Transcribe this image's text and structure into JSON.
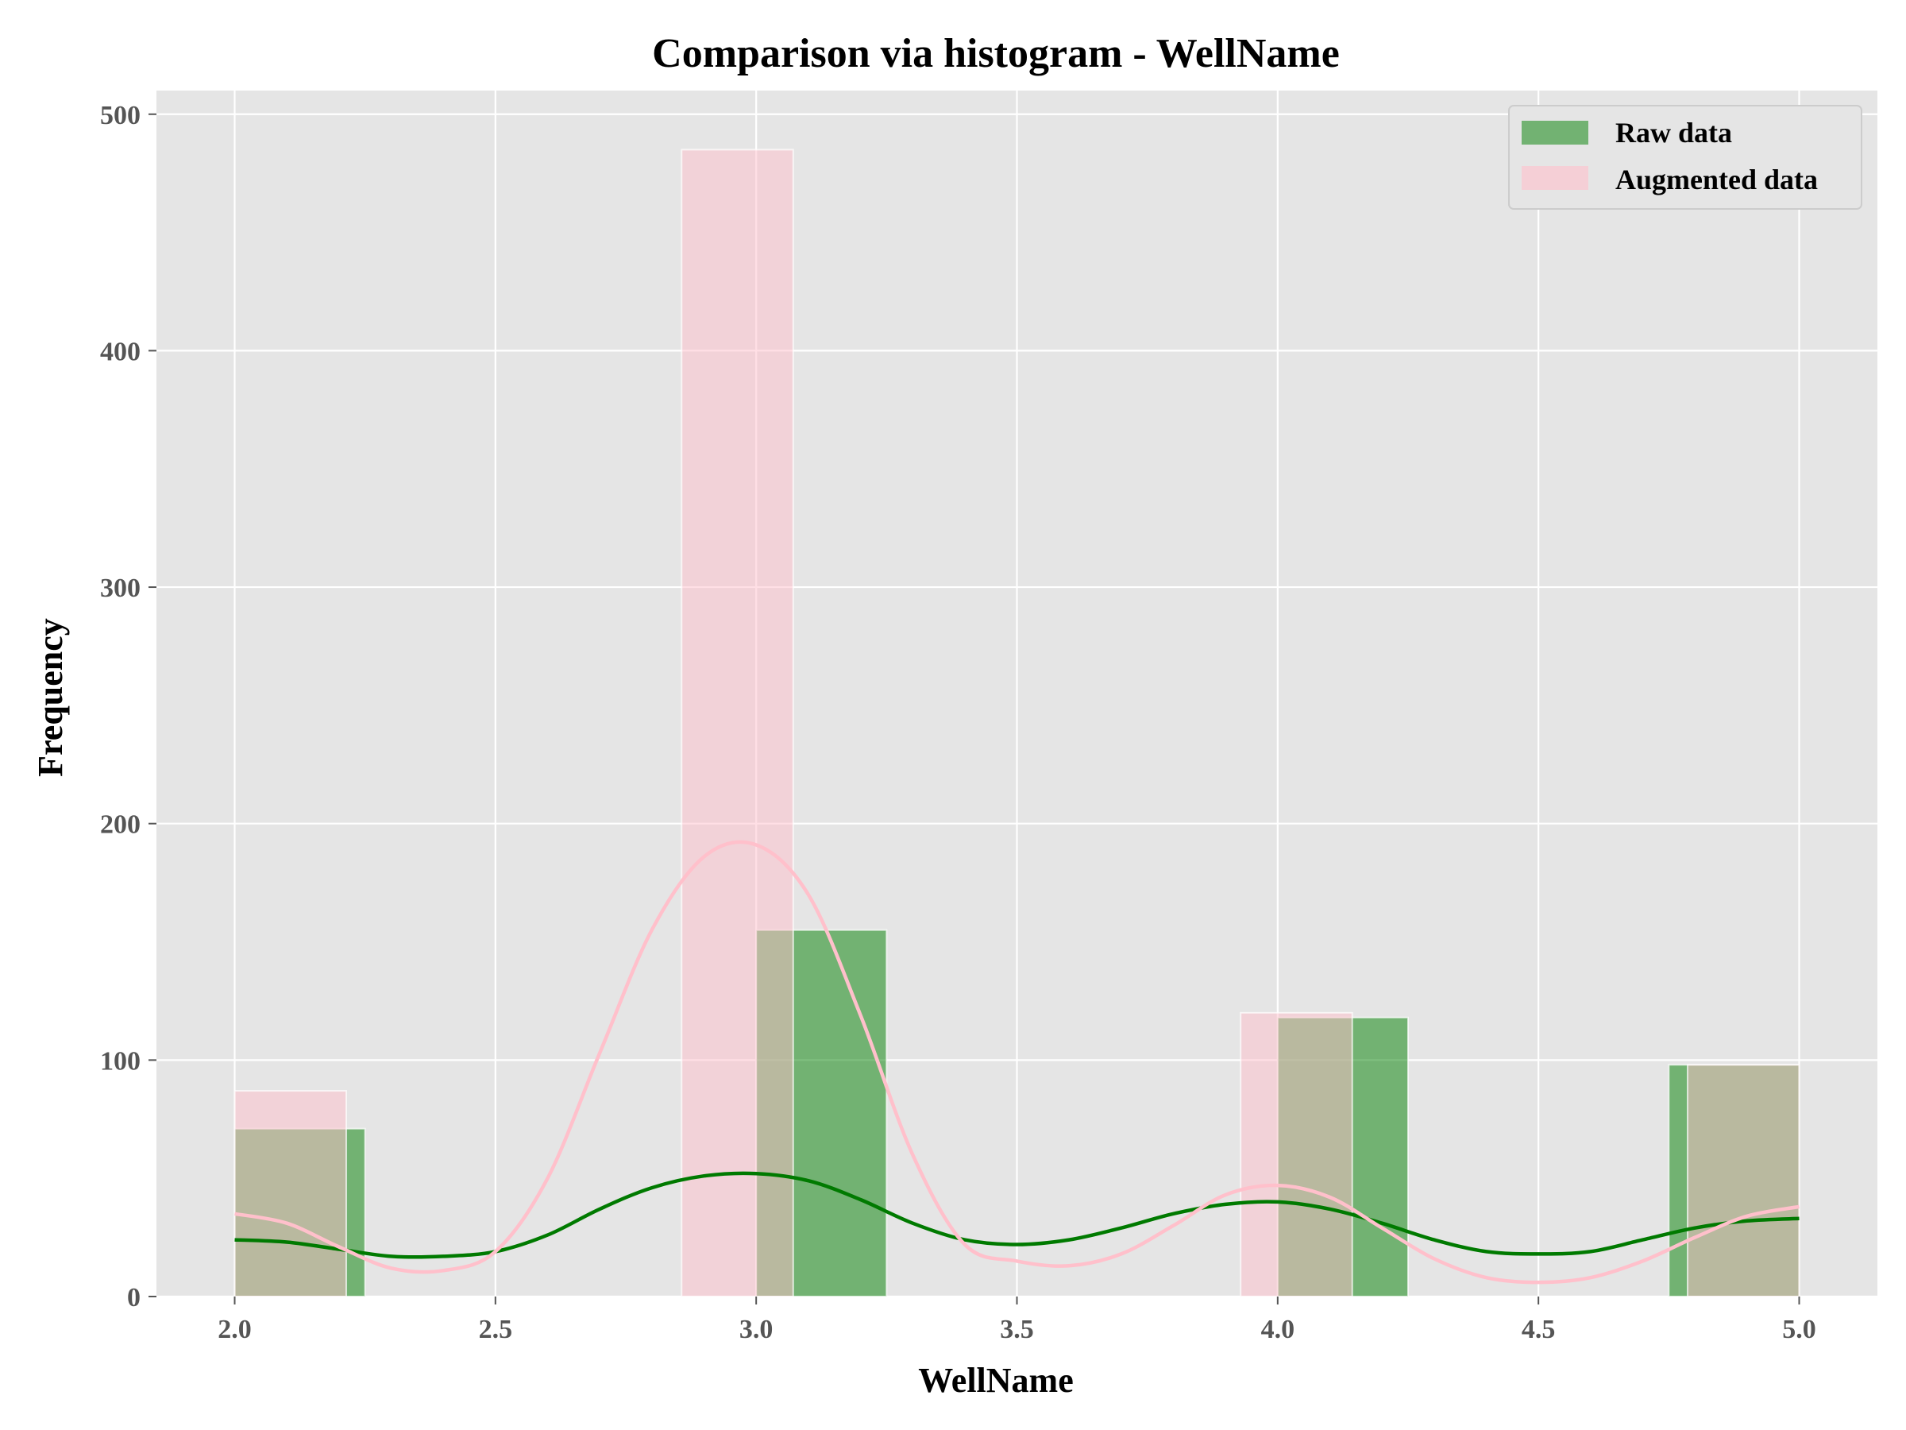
{
  "colors": {
    "background": "#ffffff",
    "plot_background": "#e5e5e5",
    "grid": "#ffffff",
    "raw_fill": "#008000",
    "raw_kde": "#007a00",
    "aug_fill": "#ffc0cb",
    "aug_kde": "#ffc0cb"
  },
  "chart_data": {
    "type": "bar",
    "title": "Comparison via histogram - WellName",
    "xlabel": "WellName",
    "ylabel": "Frequency",
    "xlim": [
      1.85,
      5.15
    ],
    "ylim": [
      0,
      510
    ],
    "x_ticks": [
      2.0,
      2.5,
      3.0,
      3.5,
      4.0,
      4.5,
      5.0
    ],
    "x_tick_labels": [
      "2.0",
      "2.5",
      "3.0",
      "3.5",
      "4.0",
      "4.5",
      "5.0"
    ],
    "y_ticks": [
      0,
      100,
      200,
      300,
      400,
      500
    ],
    "y_tick_labels": [
      "0",
      "100",
      "200",
      "300",
      "400",
      "500"
    ],
    "grid": true,
    "legend": "top-right",
    "series": [
      {
        "name": "Raw data",
        "color": "#008000",
        "bins": [
          {
            "x0": 2.0,
            "x1": 2.25,
            "count": 71
          },
          {
            "x0": 2.25,
            "x1": 2.5,
            "count": 0
          },
          {
            "x0": 2.5,
            "x1": 2.75,
            "count": 0
          },
          {
            "x0": 2.75,
            "x1": 3.0,
            "count": 0
          },
          {
            "x0": 3.0,
            "x1": 3.25,
            "count": 155
          },
          {
            "x0": 3.25,
            "x1": 3.5,
            "count": 0
          },
          {
            "x0": 3.5,
            "x1": 3.75,
            "count": 0
          },
          {
            "x0": 3.75,
            "x1": 4.0,
            "count": 0
          },
          {
            "x0": 4.0,
            "x1": 4.25,
            "count": 118
          },
          {
            "x0": 4.25,
            "x1": 4.5,
            "count": 0
          },
          {
            "x0": 4.5,
            "x1": 4.75,
            "count": 0
          },
          {
            "x0": 4.75,
            "x1": 5.0,
            "count": 98
          }
        ],
        "kde": {
          "x": [
            2.0,
            2.1,
            2.2,
            2.3,
            2.4,
            2.5,
            2.6,
            2.7,
            2.8,
            2.9,
            3.0,
            3.1,
            3.2,
            3.3,
            3.4,
            3.5,
            3.6,
            3.7,
            3.8,
            3.9,
            4.0,
            4.1,
            4.2,
            4.3,
            4.4,
            4.5,
            4.6,
            4.7,
            4.8,
            4.9,
            5.0
          ],
          "y": [
            24,
            23,
            20,
            17,
            17,
            19,
            26,
            37,
            46,
            51,
            52,
            49,
            41,
            31,
            24,
            22,
            24,
            29,
            35,
            39,
            40,
            37,
            31,
            24,
            19,
            18,
            19,
            24,
            29,
            32,
            33
          ]
        }
      },
      {
        "name": "Augmented data",
        "color": "#ffc0cb",
        "bins": [
          {
            "x0": 2.0,
            "x1": 2.214,
            "count": 87
          },
          {
            "x0": 2.214,
            "x1": 2.429,
            "count": 0
          },
          {
            "x0": 2.429,
            "x1": 2.643,
            "count": 0
          },
          {
            "x0": 2.643,
            "x1": 2.857,
            "count": 0
          },
          {
            "x0": 2.857,
            "x1": 3.071,
            "count": 485
          },
          {
            "x0": 3.071,
            "x1": 3.286,
            "count": 0
          },
          {
            "x0": 3.286,
            "x1": 3.5,
            "count": 0
          },
          {
            "x0": 3.5,
            "x1": 3.714,
            "count": 0
          },
          {
            "x0": 3.714,
            "x1": 3.929,
            "count": 0
          },
          {
            "x0": 3.929,
            "x1": 4.143,
            "count": 120
          },
          {
            "x0": 4.143,
            "x1": 4.357,
            "count": 0
          },
          {
            "x0": 4.357,
            "x1": 4.571,
            "count": 0
          },
          {
            "x0": 4.571,
            "x1": 4.786,
            "count": 0
          },
          {
            "x0": 4.786,
            "x1": 5.0,
            "count": 98
          }
        ],
        "kde": {
          "x": [
            2.0,
            2.1,
            2.2,
            2.3,
            2.4,
            2.5,
            2.6,
            2.7,
            2.8,
            2.9,
            3.0,
            3.1,
            3.2,
            3.3,
            3.4,
            3.5,
            3.6,
            3.7,
            3.8,
            3.9,
            4.0,
            4.1,
            4.2,
            4.3,
            4.4,
            4.5,
            4.6,
            4.7,
            4.8,
            4.9,
            5.0
          ],
          "y": [
            35,
            31,
            21,
            12,
            11,
            19,
            50,
            103,
            155,
            186,
            191,
            170,
            119,
            60,
            22,
            15,
            13,
            18,
            30,
            43,
            47,
            42,
            29,
            16,
            8,
            6,
            8,
            15,
            25,
            34,
            38
          ]
        }
      }
    ]
  }
}
